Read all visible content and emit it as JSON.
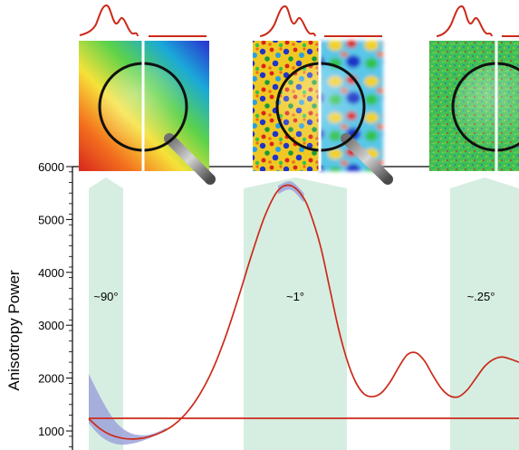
{
  "chart_data": {
    "type": "line",
    "title": "",
    "xlabel": "",
    "ylabel": "Anisotropy Power",
    "ylim": [
      700,
      6000
    ],
    "yticks": [
      1000,
      2000,
      3000,
      4000,
      5000,
      6000
    ],
    "yminor_step": 200,
    "grid": false,
    "legend": "none",
    "bands": [
      {
        "label": "~90°",
        "x_range": [
          0.0,
          0.08
        ]
      },
      {
        "label": "~1°",
        "x_range": [
          0.36,
          0.6
        ]
      },
      {
        "label": "~.25°",
        "x_range": [
          0.84,
          1.0
        ]
      }
    ],
    "series": [
      {
        "color": "#cc2a1a",
        "x": [
          0.0,
          0.025,
          0.05,
          0.08,
          0.11,
          0.14,
          0.17,
          0.2,
          0.23,
          0.26,
          0.29,
          0.32,
          0.35,
          0.38,
          0.41,
          0.44,
          0.47,
          0.5,
          0.52,
          0.54,
          0.56,
          0.58,
          0.6,
          0.62,
          0.64,
          0.66,
          0.68,
          0.7,
          0.72,
          0.74,
          0.76,
          0.78,
          0.8,
          0.82,
          0.84,
          0.86,
          0.88,
          0.9,
          0.92,
          0.94,
          0.96,
          0.98,
          1.0
        ],
        "values": [
          1230,
          1050,
          930,
          860,
          850,
          890,
          980,
          1130,
          1370,
          1720,
          2200,
          2830,
          3580,
          4370,
          5080,
          5550,
          5640,
          5400,
          5000,
          4450,
          3700,
          2950,
          2350,
          1930,
          1700,
          1650,
          1720,
          1920,
          2200,
          2440,
          2480,
          2330,
          2050,
          1800,
          1660,
          1650,
          1780,
          2000,
          2220,
          2350,
          2400,
          2360,
          2300
        ]
      },
      {
        "color": "#cc2a1a",
        "x": [
          0.0,
          1.0
        ],
        "values": [
          1240,
          1240
        ]
      }
    ],
    "uncertainty_band": {
      "color": "#9ea3d9",
      "x": [
        0.0,
        0.02,
        0.04,
        0.06,
        0.08,
        0.1,
        0.12,
        0.14,
        0.16,
        0.18
      ],
      "upper": [
        2080,
        1750,
        1450,
        1200,
        1040,
        950,
        920,
        930,
        980,
        1060
      ],
      "lower": [
        1150,
        960,
        830,
        760,
        740,
        760,
        800,
        860,
        940,
        1030
      ]
    },
    "peak_shadow": {
      "color": "#9ea3d9",
      "x": [
        0.44,
        0.47,
        0.5
      ],
      "upper": [
        5640,
        5720,
        5500
      ],
      "lower": [
        5480,
        5560,
        5320
      ]
    }
  },
  "thumbnails": [
    {
      "kind": "smooth-gradient",
      "icons": [
        "power-spectrum-icon",
        "magnifier-icon"
      ]
    },
    {
      "kind": "medium-texture",
      "icons": [
        "power-spectrum-icon",
        "magnifier-icon"
      ]
    },
    {
      "kind": "fine-texture",
      "icons": [
        "power-spectrum-icon",
        "magnifier-icon"
      ]
    }
  ],
  "colors": {
    "band_fill": "#d6eee1",
    "curve": "#cc2a1a",
    "uncertainty": "#9ea3d9",
    "axis": "#000000"
  }
}
